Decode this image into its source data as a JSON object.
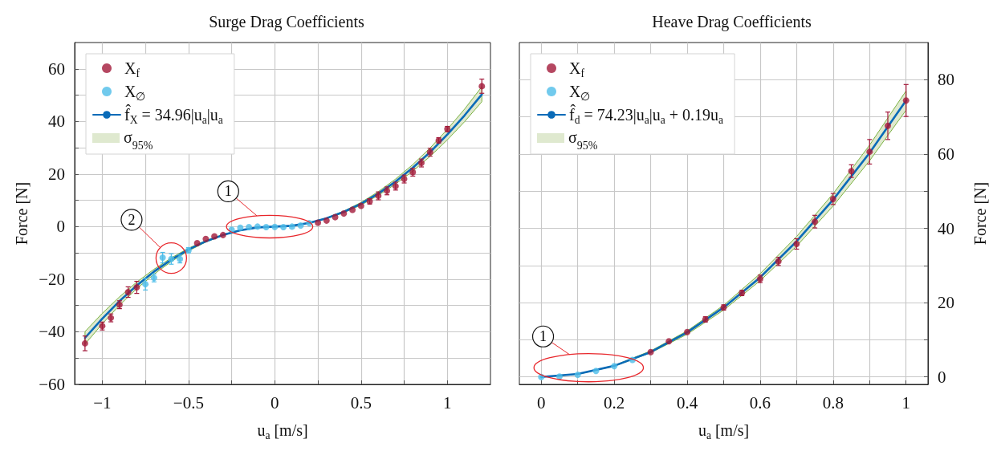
{
  "chart_data": [
    {
      "type": "scatter",
      "title": "Surge Drag Coefficients",
      "xlabel": "u$_{a}$ [m/s]",
      "ylabel": "Force [N]",
      "xlim": [
        -1.16,
        1.25
      ],
      "xticks": [
        {
          "value": -1,
          "label": "−1"
        },
        {
          "value": -0.75,
          "label": null
        },
        {
          "value": -0.5,
          "label": "−0.5"
        },
        {
          "value": -0.25,
          "label": null
        },
        0,
        {
          "value": 0.25,
          "label": null
        },
        0.5,
        {
          "value": 0.75,
          "label": null
        },
        1
      ],
      "ylim": [
        -60,
        70
      ],
      "yticks": [
        {
          "value": -60,
          "label": "−60"
        },
        {
          "value": -50,
          "label": null
        },
        {
          "value": -40,
          "label": "−40"
        },
        {
          "value": -30,
          "label": null
        },
        {
          "value": -20,
          "label": "−20"
        },
        {
          "value": -10,
          "label": null
        },
        0,
        {
          "value": 10,
          "label": null
        },
        20,
        {
          "value": 30,
          "label": null
        },
        40,
        {
          "value": 50,
          "label": null
        },
        60
      ],
      "grid": true,
      "legend": "top left",
      "marker": "circle",
      "series": [
        {
          "name": "X$_{f}$",
          "color": "#a3193a",
          "x": [
            -1.1,
            -1.0,
            -0.95,
            -0.9,
            -0.85,
            -0.8,
            -0.45,
            -0.4,
            -0.35,
            -0.3,
            0.25,
            0.3,
            0.35,
            0.4,
            0.45,
            0.5,
            0.55,
            0.6,
            0.65,
            0.7,
            0.75,
            0.8,
            0.85,
            0.9,
            0.95,
            1.0,
            1.2
          ],
          "values": [
            -44.4,
            -37.8,
            -34.7,
            -29.7,
            -24.9,
            -23.1,
            -6.3,
            -4.7,
            -3.7,
            -3.2,
            1.5,
            2.3,
            3.6,
            5.0,
            6.4,
            7.9,
            9.6,
            11.7,
            13.6,
            15.4,
            18.1,
            20.7,
            24.2,
            28.3,
            32.8,
            37.1,
            53.4
          ],
          "errors": [
            2.8,
            1.5,
            1.5,
            1.5,
            2,
            2.3,
            null,
            null,
            null,
            null,
            null,
            null,
            null,
            null,
            null,
            null,
            1,
            1.5,
            1.5,
            1.5,
            1.5,
            1.5,
            1.5,
            1.5,
            1,
            1,
            2.7
          ]
        },
        {
          "name": "X$_{∅}$",
          "color": "#4dbde9",
          "x": [
            -0.75,
            -0.7,
            -0.65,
            -0.6,
            -0.55,
            -0.5,
            -0.25,
            -0.2,
            -0.15,
            -0.1,
            -0.05,
            0,
            0.05,
            0.1,
            0.15,
            0.2
          ],
          "values": [
            -21.9,
            -19.5,
            -11.8,
            -12.3,
            -12.3,
            -9.0,
            -1.2,
            -0.4,
            -0.2,
            0,
            -0.2,
            -0.1,
            -0.2,
            0,
            0.4,
            1.3
          ],
          "errors": [
            2.2,
            1.5,
            2,
            2,
            1.5,
            1,
            null,
            null,
            null,
            null,
            null,
            null,
            null,
            null,
            null,
            null
          ]
        },
        {
          "name": "f̂$_{X}$ = 34.96|u$_{a}$|u$_{a}$",
          "type": "line",
          "marker": "none",
          "line_style": "solid",
          "color": "#0a6bb8",
          "x": [
            -1.1,
            -1.0,
            -0.9,
            -0.8,
            -0.7,
            -0.6,
            -0.5,
            -0.4,
            -0.3,
            -0.2,
            -0.1,
            0,
            0.1,
            0.2,
            0.3,
            0.4,
            0.5,
            0.6,
            0.7,
            0.8,
            0.9,
            1.0,
            1.1,
            1.2
          ],
          "values": [
            -42.3,
            -35.0,
            -28.3,
            -22.4,
            -17.1,
            -12.6,
            -8.7,
            -5.6,
            -3.2,
            -1.4,
            -0.3,
            0,
            0.3,
            1.4,
            3.2,
            5.6,
            8.7,
            12.6,
            17.1,
            22.4,
            28.3,
            35.0,
            42.3,
            50.3
          ],
          "lower": [
            -44.7,
            -37.0,
            -29.9,
            -23.6,
            -18.1,
            -13.3,
            -9.2,
            -5.9,
            -3.3,
            -1.5,
            -0.4,
            0,
            0.3,
            1.3,
            3.0,
            5.3,
            8.2,
            11.9,
            16.2,
            21.1,
            26.7,
            33.0,
            39.9,
            47.5
          ],
          "upper": [
            -39.9,
            -33.0,
            -26.7,
            -21.1,
            -16.2,
            -11.9,
            -8.2,
            -5.3,
            -3.0,
            -1.3,
            -0.3,
            0,
            0.4,
            1.5,
            3.3,
            5.9,
            9.2,
            13.3,
            18.1,
            23.6,
            29.9,
            37.0,
            44.7,
            53.2
          ]
        }
      ],
      "annotations": [
        {
          "text": "1",
          "x": -0.27,
          "y": 13.4
        },
        {
          "text": "2",
          "x": -0.83,
          "y": 2.6
        },
        "σ$_{95%}$"
      ]
    },
    {
      "type": "scatter",
      "title": "Heave Drag Coefficients",
      "xlabel": "u$_{a}$ [m/s]",
      "y2label": "Force [N]",
      "xlim": [
        -0.06,
        1.06
      ],
      "xticks": [
        0,
        {
          "value": 0.1,
          "label": null
        },
        0.2,
        {
          "value": 0.3,
          "label": null
        },
        0.4,
        {
          "value": 0.5,
          "label": null
        },
        0.6,
        {
          "value": 0.7,
          "label": null
        },
        0.8,
        {
          "value": 0.9,
          "label": null
        },
        1
      ],
      "y2lim": [
        -2,
        90
      ],
      "y2ticks": [
        0,
        {
          "value": 10,
          "label": null
        },
        20,
        {
          "value": 30,
          "label": null
        },
        40,
        {
          "value": 50,
          "label": null
        },
        60,
        {
          "value": 70,
          "label": null
        },
        80
      ],
      "grid": true,
      "legend": "top left",
      "marker": "circle",
      "series": [
        {
          "name": "X$_{f}$",
          "axis": "y2",
          "color": "#a3193a",
          "x": [
            0.3,
            0.35,
            0.4,
            0.45,
            0.5,
            0.55,
            0.6,
            0.65,
            0.7,
            0.75,
            0.8,
            0.85,
            0.9,
            0.95,
            1.0
          ],
          "values": [
            6.7,
            9.6,
            12.1,
            15.5,
            18.7,
            22.6,
            26.4,
            31.1,
            35.8,
            41.8,
            47.9,
            55.4,
            60.6,
            67.6,
            74.4
          ],
          "errors": [
            null,
            null,
            null,
            0.7,
            0.7,
            0.7,
            1,
            1.1,
            1.4,
            1.7,
            1.5,
            1.7,
            3.3,
            3.7,
            4.3
          ]
        },
        {
          "name": "X$_{∅}$",
          "axis": "y2",
          "color": "#4dbde9",
          "x": [
            0,
            0.05,
            0.1,
            0.15,
            0.2,
            0.25
          ],
          "values": [
            0,
            0.1,
            0.6,
            1.6,
            2.9,
            4.6
          ]
        },
        {
          "name": "f̂$_{d}$ = 74.23|u$_{a}$|u$_{a}$ + 0.19u$_{a}$",
          "type": "line",
          "axis": "y2",
          "marker": "none",
          "line_style": "solid",
          "color": "#0a6bb8",
          "x": [
            0,
            0.1,
            0.2,
            0.3,
            0.4,
            0.5,
            0.6,
            0.7,
            0.8,
            0.9,
            1.0
          ],
          "values": [
            0,
            0.8,
            3.0,
            6.7,
            12.0,
            18.7,
            26.8,
            36.5,
            47.7,
            60.3,
            74.4
          ],
          "lower": [
            0,
            0.7,
            2.9,
            6.5,
            11.5,
            18.0,
            25.9,
            35.2,
            46.0,
            58.2,
            71.8
          ],
          "upper": [
            0,
            0.8,
            3.1,
            7.0,
            12.4,
            19.3,
            27.8,
            37.8,
            49.3,
            62.4,
            77.0
          ]
        }
      ],
      "annotations": [
        "1",
        "σ$_{95%}$"
      ]
    }
  ]
}
